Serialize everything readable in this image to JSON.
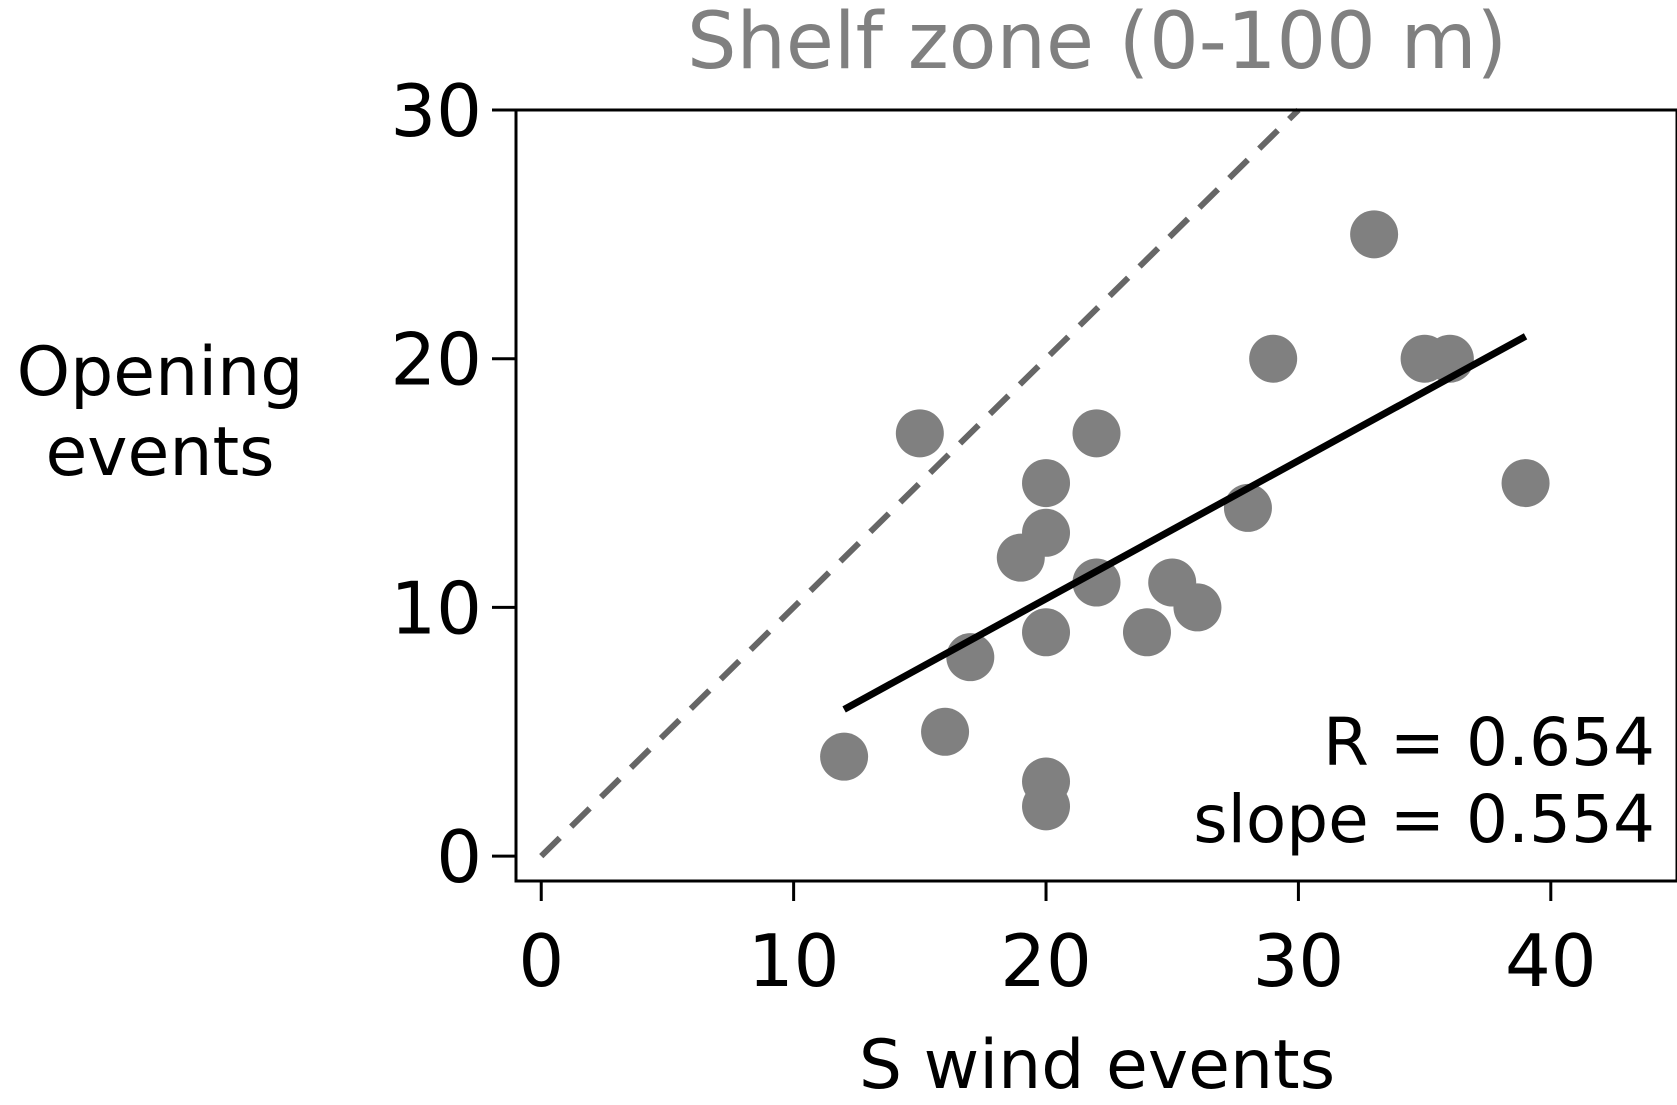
{
  "chart_data": {
    "type": "scatter",
    "title": "Shelf zone (0-100 m)",
    "xlabel": "S wind events",
    "ylabel": [
      "Opening",
      "events"
    ],
    "xlim": [
      -1,
      45
    ],
    "ylim": [
      -1,
      30
    ],
    "x_ticks": [
      0,
      10,
      20,
      30,
      40
    ],
    "x_tick_labels": [
      "0",
      "10",
      "20",
      "30",
      "40"
    ],
    "y_ticks": [
      0,
      10,
      20,
      30
    ],
    "y_tick_labels": [
      "0",
      "10",
      "20",
      "30"
    ],
    "grid": false,
    "points": [
      {
        "x": 12,
        "y": 4
      },
      {
        "x": 15,
        "y": 17
      },
      {
        "x": 16,
        "y": 5
      },
      {
        "x": 17,
        "y": 8
      },
      {
        "x": 19,
        "y": 12
      },
      {
        "x": 20,
        "y": 15
      },
      {
        "x": 20,
        "y": 13
      },
      {
        "x": 20,
        "y": 9
      },
      {
        "x": 20,
        "y": 3
      },
      {
        "x": 20,
        "y": 2
      },
      {
        "x": 22,
        "y": 17
      },
      {
        "x": 22,
        "y": 11
      },
      {
        "x": 24,
        "y": 9
      },
      {
        "x": 25,
        "y": 11
      },
      {
        "x": 26,
        "y": 10
      },
      {
        "x": 28,
        "y": 14
      },
      {
        "x": 29,
        "y": 20
      },
      {
        "x": 33,
        "y": 25
      },
      {
        "x": 35,
        "y": 20
      },
      {
        "x": 36,
        "y": 20
      },
      {
        "x": 39,
        "y": 15
      }
    ],
    "identity_line": {
      "x": [
        0,
        30
      ],
      "y": [
        0,
        30
      ],
      "style": "dashed"
    },
    "fit_line": {
      "x": [
        12,
        39
      ],
      "y": [
        5.9,
        20.9
      ],
      "style": "solid"
    },
    "annotations": [
      "R = 0.654",
      "slope = 0.554"
    ],
    "colors": {
      "points": "#808080",
      "identity_line": "#666666",
      "fit_line": "#000000",
      "title": "#808080",
      "axes": "#000000"
    }
  }
}
